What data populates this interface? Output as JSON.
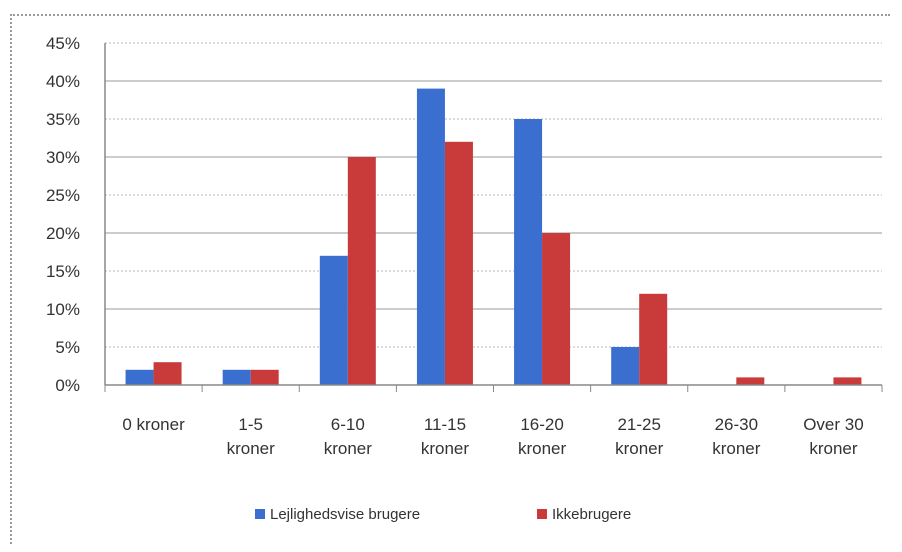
{
  "chart_data": {
    "type": "bar",
    "categories": [
      [
        "0 kroner"
      ],
      [
        "1-5",
        "kroner"
      ],
      [
        "6-10",
        "kroner"
      ],
      [
        "11-15",
        "kroner"
      ],
      [
        "16-20",
        "kroner"
      ],
      [
        "21-25",
        "kroner"
      ],
      [
        "26-30",
        "kroner"
      ],
      [
        "Over 30",
        "kroner"
      ]
    ],
    "series": [
      {
        "name": "Lejlighedsvise brugere",
        "color": "#3a6fd0",
        "values": [
          2,
          2,
          17,
          39,
          35,
          5,
          0,
          0
        ]
      },
      {
        "name": "Ikkebrugere",
        "color": "#c93a3a",
        "values": [
          3,
          2,
          30,
          32,
          20,
          12,
          1,
          1
        ]
      }
    ],
    "yticks": [
      "0%",
      "5%",
      "10%",
      "15%",
      "20%",
      "25%",
      "30%",
      "35%",
      "40%",
      "45%"
    ],
    "ylim": [
      0,
      45
    ],
    "ystep": 5,
    "y_unit": "%",
    "grid": true,
    "legend_position": "bottom",
    "title": "",
    "xlabel": "",
    "ylabel": ""
  }
}
